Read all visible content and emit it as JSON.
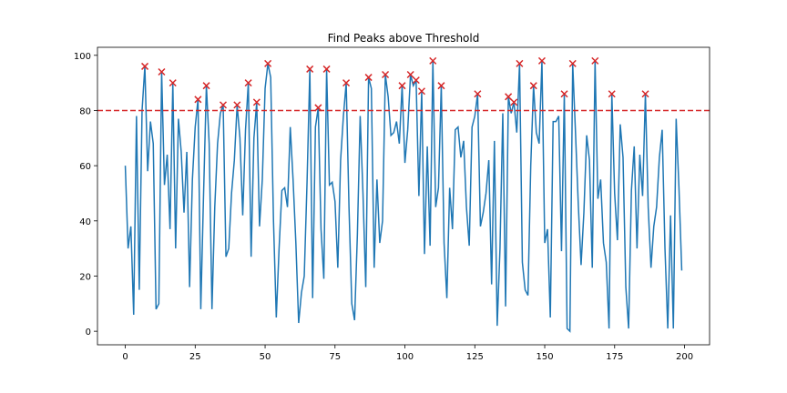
{
  "chart_data": {
    "type": "line",
    "title": "Find Peaks above Threshold",
    "series": [
      {
        "type": "line",
        "color": "#1f77b4",
        "x": [
          0,
          1,
          2,
          3,
          4,
          5,
          6,
          7,
          8,
          9,
          10,
          11,
          12,
          13,
          14,
          15,
          16,
          17,
          18,
          19,
          20,
          21,
          22,
          23,
          24,
          25,
          26,
          27,
          28,
          29,
          30,
          31,
          32,
          33,
          34,
          35,
          36,
          37,
          38,
          39,
          40,
          41,
          42,
          43,
          44,
          45,
          46,
          47,
          48,
          49,
          50,
          51,
          52,
          53,
          54,
          55,
          56,
          57,
          58,
          59,
          60,
          61,
          62,
          63,
          64,
          65,
          66,
          67,
          68,
          69,
          70,
          71,
          72,
          73,
          74,
          75,
          76,
          77,
          78,
          79,
          80,
          81,
          82,
          83,
          84,
          85,
          86,
          87,
          88,
          89,
          90,
          91,
          92,
          93,
          94,
          95,
          96,
          97,
          98,
          99,
          100,
          101,
          102,
          103,
          104,
          105,
          106,
          107,
          108,
          109,
          110,
          111,
          112,
          113,
          114,
          115,
          116,
          117,
          118,
          119,
          120,
          121,
          122,
          123,
          124,
          125,
          126,
          127,
          128,
          129,
          130,
          131,
          132,
          133,
          134,
          135,
          136,
          137,
          138,
          139,
          140,
          141,
          142,
          143,
          144,
          145,
          146,
          147,
          148,
          149,
          150,
          151,
          152,
          153,
          154,
          155,
          156,
          157,
          158,
          159,
          160,
          161,
          162,
          163,
          164,
          165,
          166,
          167,
          168,
          169,
          170,
          171,
          172,
          173,
          174,
          175,
          176,
          177,
          178,
          179,
          180,
          181,
          182,
          183,
          184,
          185,
          186,
          187,
          188,
          189,
          190,
          191,
          192,
          193,
          194,
          195,
          196,
          197,
          198,
          199
        ],
        "values": [
          60,
          30,
          38,
          6,
          78,
          15,
          80,
          96,
          58,
          76,
          68,
          8,
          10,
          94,
          53,
          64,
          37,
          90,
          30,
          77,
          65,
          43,
          65,
          16,
          55,
          74,
          84,
          8,
          50,
          89,
          68,
          8,
          45,
          68,
          79,
          82,
          27,
          30,
          50,
          62,
          82,
          70,
          42,
          73,
          90,
          27,
          70,
          83,
          38,
          55,
          88,
          97,
          92,
          40,
          5,
          30,
          51,
          52,
          45,
          74,
          55,
          32,
          3,
          14,
          20,
          54,
          95,
          12,
          74,
          81,
          37,
          19,
          95,
          53,
          54,
          47,
          23,
          62,
          78,
          90,
          45,
          10,
          4,
          35,
          78,
          50,
          16,
          92,
          88,
          23,
          55,
          32,
          40,
          93,
          85,
          71,
          72,
          76,
          68,
          89,
          61,
          73,
          93,
          89,
          91,
          49,
          87,
          28,
          67,
          31,
          98,
          45,
          52,
          89,
          32,
          12,
          52,
          37,
          73,
          74,
          63,
          69,
          45,
          31,
          74,
          78,
          86,
          38,
          43,
          50,
          62,
          17,
          69,
          2,
          30,
          79,
          9,
          85,
          79,
          83,
          72,
          97,
          25,
          15,
          13,
          60,
          89,
          72,
          68,
          98,
          32,
          37,
          5,
          76,
          76,
          78,
          29,
          86,
          1,
          0,
          97,
          72,
          46,
          24,
          43,
          71,
          62,
          23,
          98,
          48,
          55,
          32,
          25,
          1,
          86,
          50,
          33,
          75,
          63,
          16,
          1,
          51,
          67,
          30,
          64,
          49,
          86,
          45,
          23,
          38,
          45,
          63,
          73,
          30,
          1,
          42,
          1,
          77,
          52,
          22
        ]
      },
      {
        "type": "scatter",
        "color": "#d62728",
        "x": [
          7,
          13,
          17,
          26,
          29,
          35,
          40,
          44,
          47,
          51,
          66,
          69,
          72,
          79,
          87,
          93,
          99,
          102,
          104,
          106,
          110,
          113,
          126,
          137,
          139,
          141,
          146,
          149,
          157,
          160,
          168,
          174,
          186
        ],
        "values": [
          96,
          94,
          90,
          84,
          89,
          82,
          82,
          90,
          83,
          97,
          95,
          81,
          95,
          90,
          92,
          93,
          89,
          93,
          91,
          87,
          98,
          89,
          86,
          85,
          83,
          97,
          89,
          98,
          86,
          97,
          98,
          86,
          86
        ]
      }
    ],
    "threshold": 80,
    "threshold_color": "#d62728",
    "xlim": [
      -9.95,
      208.95
    ],
    "ylim": [
      -4.9,
      102.9
    ],
    "xticks": [
      0,
      25,
      50,
      75,
      100,
      125,
      150,
      175,
      200
    ],
    "yticks": [
      0,
      20,
      40,
      60,
      80,
      100
    ]
  }
}
